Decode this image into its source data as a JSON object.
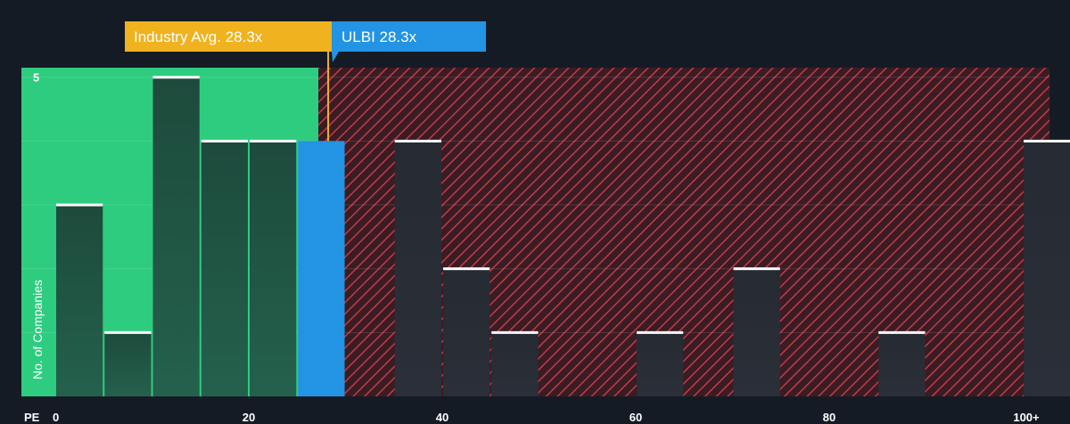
{
  "chart_data": {
    "type": "bar",
    "x_axis_label": "PE",
    "ylabel": "No. of Companies",
    "x_ticks": [
      "0",
      "20",
      "40",
      "60",
      "80",
      "100+"
    ],
    "y_tick_label": "5",
    "xlim": [
      0,
      102.5
    ],
    "ylim": [
      0,
      5.15
    ],
    "bin_width": 5,
    "bins": [
      {
        "start": 0,
        "value": 3
      },
      {
        "start": 5,
        "value": 1
      },
      {
        "start": 10,
        "value": 5
      },
      {
        "start": 15,
        "value": 4
      },
      {
        "start": 20,
        "value": 4
      },
      {
        "start": 25,
        "value": 4,
        "highlight": true
      },
      {
        "start": 35,
        "value": 4
      },
      {
        "start": 40,
        "value": 2
      },
      {
        "start": 45,
        "value": 1
      },
      {
        "start": 60,
        "value": 1
      },
      {
        "start": 70,
        "value": 2
      },
      {
        "start": 85,
        "value": 1
      },
      {
        "start": 100,
        "value": 4
      }
    ],
    "industry_avg": {
      "label": "Industry Avg. 28.3x",
      "value": 28.3
    },
    "company": {
      "label": "ULBI 28.3x",
      "value": 28.3
    },
    "fair_zone_end": 27.2
  },
  "colors": {
    "background": "#151b24",
    "fair_zone": "#2ecc7e",
    "over_zone_stripe": "#c23b45",
    "bar_in_zone": "#1e4a3d",
    "bar_over_zone": "#252a33",
    "bar_highlight": "#2394e3",
    "bar_cap": "#ffffff",
    "industry_callout": "#f0b21e",
    "company_callout": "#2394e3"
  }
}
